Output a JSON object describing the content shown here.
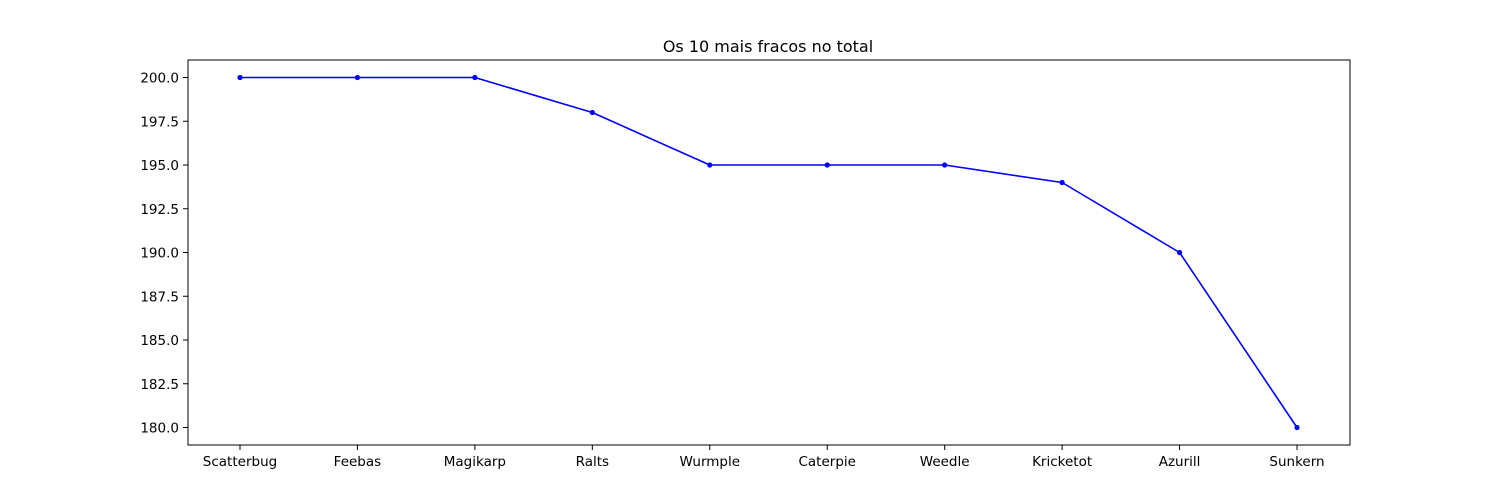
{
  "chart_data": {
    "type": "line",
    "title": "Os 10 mais fracos no total",
    "xlabel": "",
    "ylabel": "",
    "categories": [
      "Scatterbug",
      "Feebas",
      "Magikarp",
      "Ralts",
      "Wurmple",
      "Caterpie",
      "Weedle",
      "Kricketot",
      "Azurill",
      "Sunkern"
    ],
    "series": [
      {
        "values": [
          200,
          200,
          200,
          198,
          195,
          195,
          195,
          194,
          190,
          180
        ],
        "color": "#0000ff",
        "marker": "dot"
      }
    ],
    "yticks": [
      "180.0",
      "182.5",
      "185.0",
      "187.5",
      "190.0",
      "192.5",
      "195.0",
      "197.5",
      "200.0"
    ],
    "ylim": [
      179,
      201
    ],
    "grid": false,
    "legend": "none"
  }
}
